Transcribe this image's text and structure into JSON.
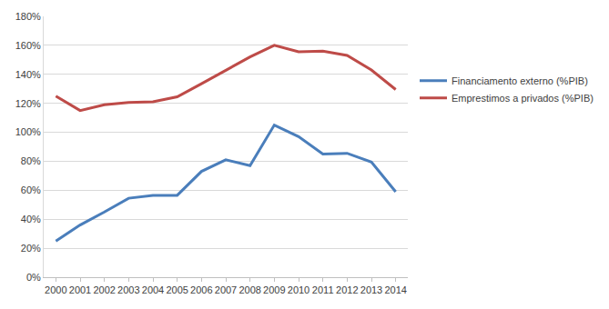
{
  "chart_data": {
    "type": "line",
    "categories": [
      "2000",
      "2001",
      "2002",
      "2003",
      "2004",
      "2005",
      "2006",
      "2007",
      "2008",
      "2009",
      "2010",
      "2011",
      "2012",
      "2013",
      "2014"
    ],
    "series": [
      {
        "name": "Financiamento externo (%PIB)",
        "color": "#4a7ebb",
        "values": [
          25,
          36,
          45,
          54.5,
          56.5,
          56.5,
          73,
          81,
          77,
          105,
          97,
          85,
          85.5,
          79.5,
          59
        ]
      },
      {
        "name": "Emprestimos a privados (%PIB)",
        "color": "#be4b48",
        "values": [
          125,
          115,
          119,
          120.5,
          121,
          124.5,
          133.5,
          142.5,
          152,
          160,
          155.5,
          156,
          153,
          143,
          129.5
        ]
      }
    ],
    "ylim": [
      0,
      180
    ],
    "yticks": [
      {
        "value": 0,
        "label": "0%"
      },
      {
        "value": 20,
        "label": "20%"
      },
      {
        "value": 40,
        "label": "40%"
      },
      {
        "value": 60,
        "label": "60%"
      },
      {
        "value": 80,
        "label": "80%"
      },
      {
        "value": 100,
        "label": "100%"
      },
      {
        "value": 120,
        "label": "120%"
      },
      {
        "value": 140,
        "label": "140%"
      },
      {
        "value": 160,
        "label": "160%"
      },
      {
        "value": 180,
        "label": "180%"
      }
    ],
    "grid": true,
    "legend": "right"
  }
}
